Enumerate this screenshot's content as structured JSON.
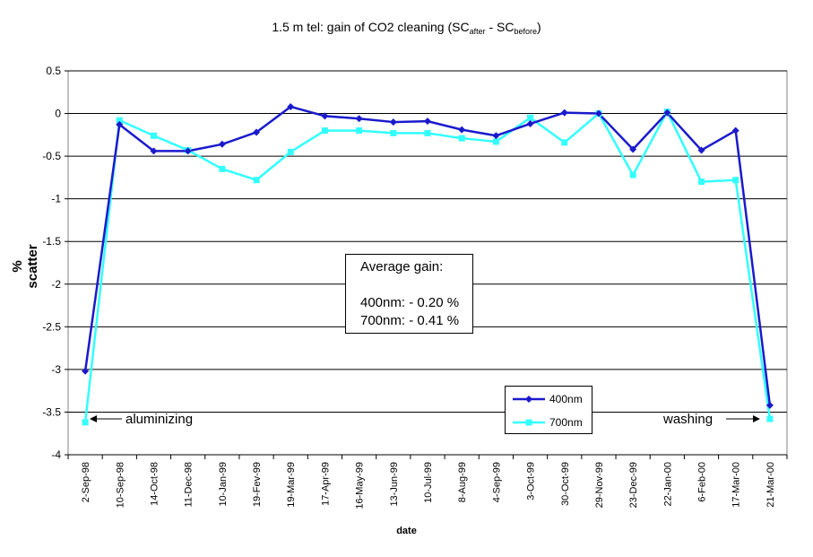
{
  "title_parts": {
    "prefix": "1.5 m tel: gain of CO2 cleaning (SC",
    "sub1": "after",
    "mid": " - SC",
    "sub2": "before",
    "suffix": ")"
  },
  "annotations": {
    "avg_title": "Average gain:",
    "avg_400": "400nm: - 0.20 %",
    "avg_700": "700nm: - 0.41 %",
    "left_note": "aluminizing",
    "right_note": "washing"
  },
  "colors": {
    "series_400": "#1a1acc",
    "series_700": "#33ffff",
    "gridline": "#000000",
    "axis": "#808080"
  },
  "chart_data": {
    "type": "line",
    "title": "1.5 m tel: gain of CO2 cleaning (SCafter - SCbefore)",
    "xlabel": "date",
    "ylabel": "% scatter",
    "ylim": [
      -4,
      0.5
    ],
    "yticks": [
      "0.5",
      "0",
      "-0.5",
      "-1",
      "-1.5",
      "-2",
      "-2.5",
      "-3",
      "-3.5",
      "-4"
    ],
    "grid": true,
    "legend_position": "bottom-right",
    "categories": [
      "2-Sep-98",
      "10-Sep-98",
      "14-Oct-98",
      "11-Dec-98",
      "10-Jan-99",
      "19-Fev-99",
      "19-Mar-99",
      "17-Apr-99",
      "16-May-99",
      "13-Jun-99",
      "10-Jul-99",
      "8-Aug-99",
      "4-Sep-99",
      "3-Oct-99",
      "30-Oct-99",
      "29-Nov-99",
      "23-Dec-99",
      "22-Jan-00",
      "6-Feb-00",
      "17-Mar-00",
      "21-Mar-00"
    ],
    "series": [
      {
        "name": "400nm",
        "values": [
          -3.02,
          -0.13,
          -0.44,
          -0.44,
          -0.36,
          -0.22,
          0.08,
          -0.03,
          -0.06,
          -0.1,
          -0.09,
          -0.19,
          -0.26,
          -0.12,
          0.01,
          0.0,
          -0.42,
          0.01,
          -0.43,
          -0.2,
          -3.42
        ]
      },
      {
        "name": "700nm",
        "values": [
          -3.62,
          -0.08,
          -0.26,
          -0.43,
          -0.65,
          -0.78,
          -0.45,
          -0.2,
          -0.2,
          -0.23,
          -0.23,
          -0.29,
          -0.33,
          -0.05,
          -0.34,
          0.0,
          -0.72,
          0.02,
          -0.8,
          -0.78,
          -3.58
        ]
      }
    ]
  }
}
